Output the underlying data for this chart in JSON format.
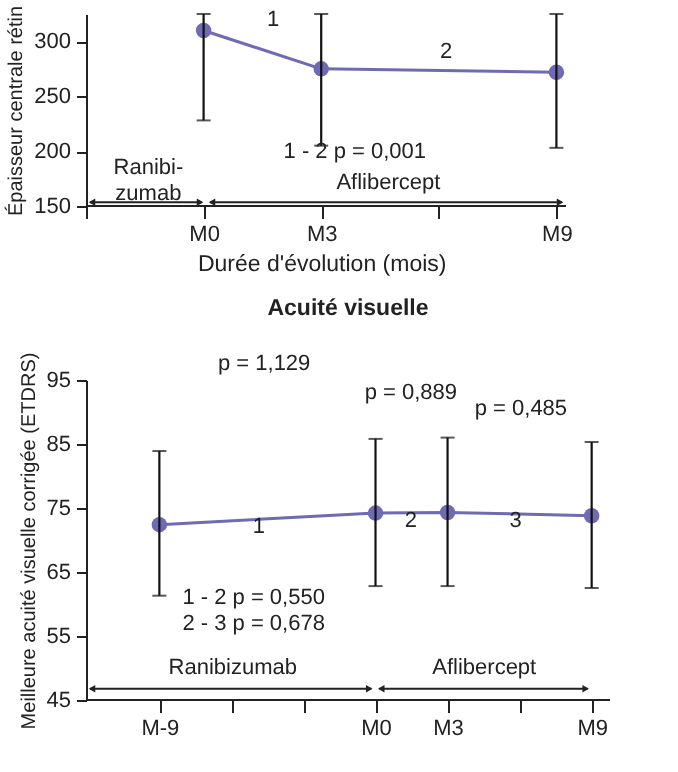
{
  "chart_data": [
    {
      "type": "line",
      "xlabel": "Durée d'évolution (mois)",
      "ylabel": "Épaisseur centrale rétin",
      "categories": [
        null,
        "M0",
        "M3",
        null,
        "M9"
      ],
      "series": [
        {
          "color": "#6f6ab4",
          "values": [
            null,
            310,
            275,
            null,
            272
          ],
          "errors": [
            null,
            [
              228,
              325
            ],
            [
              205,
              325
            ],
            null,
            [
              203,
              325
            ]
          ]
        }
      ],
      "ylim": [
        150,
        325
      ],
      "yticks": [
        150,
        200,
        250,
        300
      ],
      "annotations": [
        "1",
        "2",
        "1 - 2 p = 0,001",
        "Ranibi-\nzumab",
        "Aflibercept"
      ],
      "marker": "circle",
      "line_style": "solid",
      "grid": false,
      "legend": false
    },
    {
      "type": "line",
      "title": "Acuité visuelle",
      "ylabel": "Meilleure acuité visuelle corrigée (ETDRS)",
      "categories": [
        "M-9",
        null,
        null,
        "M0",
        "M3",
        null,
        "M9"
      ],
      "series": [
        {
          "color": "#6f6ab4",
          "values": [
            72.4,
            null,
            null,
            74.2,
            74.3,
            null,
            73.8
          ],
          "errors": [
            [
              61.3,
              83.9
            ],
            null,
            null,
            [
              62.8,
              85.8
            ],
            [
              62.8,
              86
            ],
            null,
            [
              62.5,
              85.3
            ]
          ]
        }
      ],
      "ylim": [
        45,
        95
      ],
      "yticks": [
        45,
        55,
        65,
        75,
        85,
        95
      ],
      "annotations": [
        "p = 1,129",
        "p = 0,889",
        "p = 0,485",
        "1",
        "2",
        "3",
        "1 - 2 p = 0,550\n2 - 3 p = 0,678",
        "Ranibizumab",
        "Aflibercept"
      ],
      "marker": "circle",
      "line_style": "solid",
      "grid": false,
      "legend": false
    }
  ]
}
